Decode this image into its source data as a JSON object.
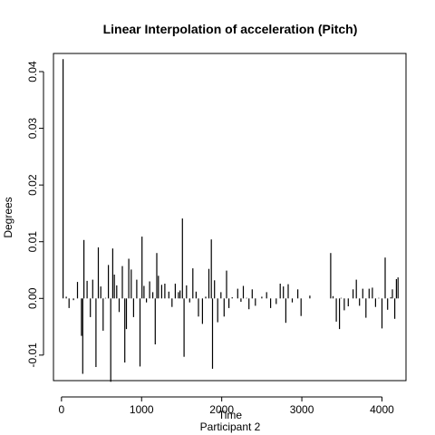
{
  "chart_data": {
    "type": "line",
    "style": "histogram-spikes",
    "title": "Linear Interpolation of acceleration (Pitch)",
    "xlabel": "Time",
    "subtitle": "Participant  2",
    "ylabel": "Degrees",
    "xlim": [
      -100,
      4300
    ],
    "ylim": [
      -0.0145,
      0.0432
    ],
    "x_ticks": [
      {
        "value": 0,
        "label": "0"
      },
      {
        "value": 1000,
        "label": "1000"
      },
      {
        "value": 2000,
        "label": "2000"
      },
      {
        "value": 3000,
        "label": "3000"
      },
      {
        "value": 4000,
        "label": "4000"
      }
    ],
    "y_ticks": [
      {
        "value": -0.01,
        "label": "-0.01"
      },
      {
        "value": 0.0,
        "label": "0.00"
      },
      {
        "value": 0.01,
        "label": "0.01"
      },
      {
        "value": 0.02,
        "label": "0.02"
      },
      {
        "value": 0.03,
        "label": "0.03"
      },
      {
        "value": 0.04,
        "label": "0.04"
      }
    ],
    "grid": false,
    "series": [
      {
        "points": [
          [
            20,
            0.0422
          ],
          [
            60,
            0.0003
          ],
          [
            95,
            -0.0017
          ],
          [
            150,
            -0.0003
          ],
          [
            200,
            0.0029
          ],
          [
            250,
            -0.0066
          ],
          [
            265,
            -0.0133
          ],
          [
            280,
            0.0103
          ],
          [
            320,
            0.0031
          ],
          [
            360,
            -0.0033
          ],
          [
            390,
            0.0033
          ],
          [
            430,
            -0.0121
          ],
          [
            460,
            0.009
          ],
          [
            490,
            0.0021
          ],
          [
            520,
            -0.0057
          ],
          [
            550,
            0.0001
          ],
          [
            585,
            0.0059
          ],
          [
            615,
            -0.0147
          ],
          [
            640,
            0.0088
          ],
          [
            660,
            0.0042
          ],
          [
            690,
            0.0023
          ],
          [
            720,
            -0.0024
          ],
          [
            760,
            0.0057
          ],
          [
            790,
            -0.0113
          ],
          [
            810,
            -0.0054
          ],
          [
            840,
            0.007
          ],
          [
            870,
            0.0051
          ],
          [
            900,
            -0.0033
          ],
          [
            940,
            0.0033
          ],
          [
            980,
            -0.012
          ],
          [
            1005,
            0.0109
          ],
          [
            1030,
            0.0022
          ],
          [
            1060,
            -0.0007
          ],
          [
            1100,
            0.003
          ],
          [
            1140,
            0.0011
          ],
          [
            1170,
            -0.0081
          ],
          [
            1190,
            0.008
          ],
          [
            1210,
            0.004
          ],
          [
            1250,
            0.0024
          ],
          [
            1290,
            0.0026
          ],
          [
            1340,
            0.0012
          ],
          [
            1380,
            -0.0015
          ],
          [
            1420,
            0.0026
          ],
          [
            1460,
            0.0011
          ],
          [
            1480,
            0.0014
          ],
          [
            1510,
            0.0141
          ],
          [
            1530,
            -0.0103
          ],
          [
            1560,
            0.0023
          ],
          [
            1600,
            -0.0007
          ],
          [
            1640,
            0.0053
          ],
          [
            1680,
            0.0012
          ],
          [
            1710,
            -0.0032
          ],
          [
            1760,
            -0.0045
          ],
          [
            1800,
            0.0003
          ],
          [
            1840,
            0.0052
          ],
          [
            1870,
            0.0104
          ],
          [
            1885,
            -0.0124
          ],
          [
            1910,
            0.0032
          ],
          [
            1950,
            -0.0042
          ],
          [
            1990,
            0.0011
          ],
          [
            2030,
            -0.0032
          ],
          [
            2060,
            0.0049
          ],
          [
            2090,
            -0.0017
          ],
          [
            2130,
            0.0002
          ],
          [
            2200,
            0.0017
          ],
          [
            2240,
            -0.0006
          ],
          [
            2270,
            0.0022
          ],
          [
            2310,
            0.0001
          ],
          [
            2340,
            -0.0019
          ],
          [
            2380,
            0.0016
          ],
          [
            2420,
            -0.0013
          ],
          [
            2500,
            0.0003
          ],
          [
            2560,
            0.0011
          ],
          [
            2610,
            -0.0017
          ],
          [
            2680,
            -0.001
          ],
          [
            2730,
            0.0026
          ],
          [
            2770,
            0.0021
          ],
          [
            2800,
            -0.0043
          ],
          [
            2830,
            0.0025
          ],
          [
            2880,
            -0.0007
          ],
          [
            2950,
            0.0016
          ],
          [
            2990,
            -0.0031
          ],
          [
            3100,
            0.0005
          ],
          [
            3360,
            0.008
          ],
          [
            3390,
            0.0004
          ],
          [
            3430,
            -0.0041
          ],
          [
            3470,
            -0.0054
          ],
          [
            3490,
            0.0001
          ],
          [
            3530,
            -0.0021
          ],
          [
            3580,
            -0.0014
          ],
          [
            3640,
            0.0016
          ],
          [
            3680,
            0.0033
          ],
          [
            3720,
            -0.0013
          ],
          [
            3760,
            0.0017
          ],
          [
            3800,
            -0.0034
          ],
          [
            3840,
            0.0017
          ],
          [
            3880,
            0.0019
          ],
          [
            3920,
            -0.0015
          ],
          [
            3960,
            0.0001
          ],
          [
            4000,
            -0.0053
          ],
          [
            4040,
            0.0072
          ],
          [
            4070,
            -0.002
          ],
          [
            4110,
            0.0002
          ],
          [
            4130,
            0.0016
          ],
          [
            4160,
            -0.0036
          ],
          [
            4180,
            0.0034
          ],
          [
            4200,
            0.0037
          ]
        ]
      }
    ]
  }
}
